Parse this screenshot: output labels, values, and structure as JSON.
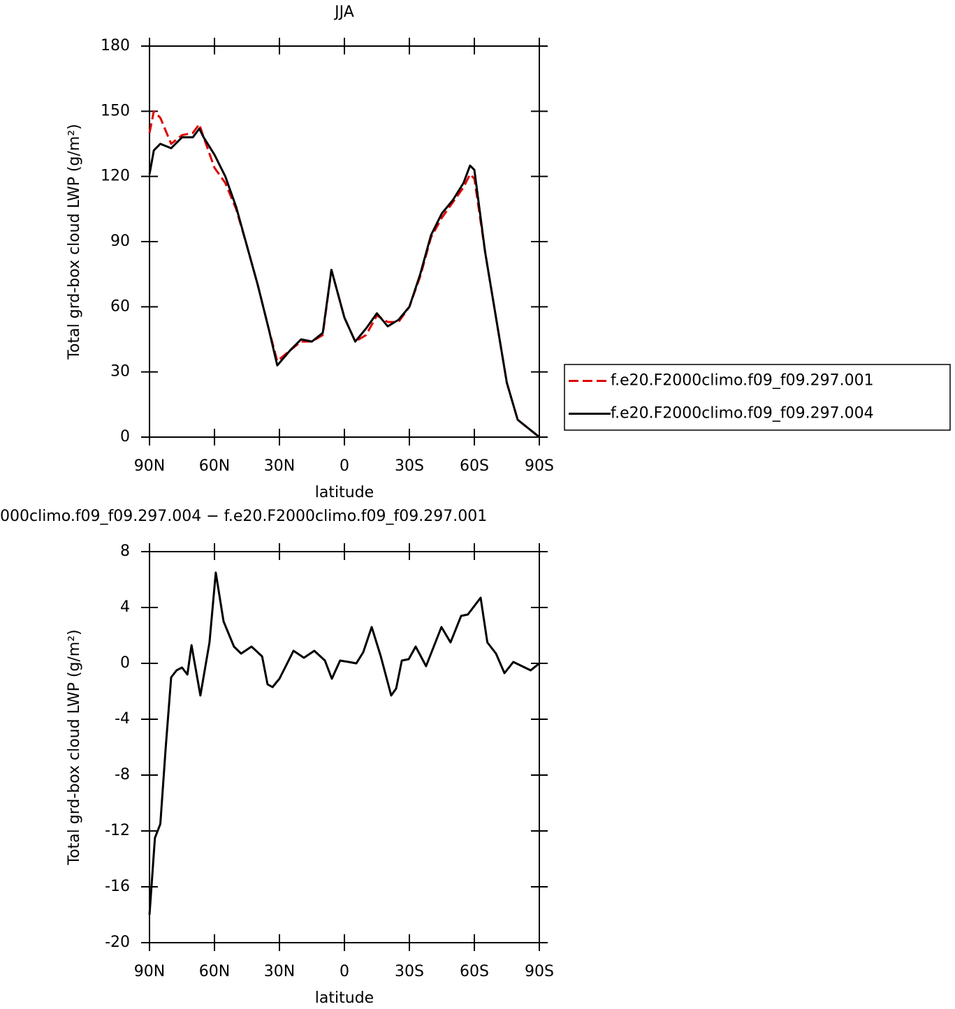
{
  "chart_data": [
    {
      "type": "line",
      "title": "JJA",
      "xlabel": "latitude",
      "ylabel": "Total grd-box cloud LWP (g/m²)",
      "x": [
        90,
        88,
        85,
        80,
        75,
        70,
        67,
        65,
        60,
        55,
        50,
        45,
        40,
        35,
        31,
        25,
        20,
        15,
        10,
        6,
        0,
        -5,
        -10,
        -15,
        -20,
        -25,
        -30,
        -35,
        -40,
        -45,
        -50,
        -55,
        -58,
        -60,
        -65,
        -70,
        -75,
        -80,
        -85,
        -90
      ],
      "series": [
        {
          "name": "f.e20.F2000climo.f09_f09.297.001",
          "color": "#e00000",
          "style": "dashed",
          "values": [
            140,
            150,
            147,
            135,
            139,
            140,
            144,
            138,
            124,
            117,
            105,
            88,
            70,
            50,
            35,
            40,
            44,
            44,
            47,
            77,
            55,
            44,
            47,
            56,
            53,
            53,
            60,
            74,
            92,
            101,
            108,
            115,
            121,
            119,
            85,
            55,
            25,
            8,
            4,
            0
          ]
        },
        {
          "name": "f.e20.F2000climo.f09_f09.297.004",
          "color": "#000000",
          "style": "solid",
          "values": [
            121,
            132,
            135,
            133,
            138,
            138,
            142,
            138,
            130,
            120,
            106,
            88,
            70,
            50,
            33,
            40,
            45,
            44,
            48,
            77,
            55,
            44,
            50,
            57,
            51,
            54,
            60,
            75,
            93,
            103,
            109,
            117,
            125,
            123,
            85,
            55,
            25,
            8,
            4,
            0
          ]
        }
      ],
      "xlim": [
        90,
        -90
      ],
      "xticks": [
        {
          "value": 90,
          "label": "90N"
        },
        {
          "value": 60,
          "label": "60N"
        },
        {
          "value": 30,
          "label": "30N"
        },
        0,
        {
          "value": -30,
          "label": "30S"
        },
        {
          "value": -60,
          "label": "60S"
        },
        {
          "value": -90,
          "label": "90S"
        }
      ],
      "ylim": [
        0,
        180
      ],
      "yticks": [
        0,
        30,
        60,
        90,
        120,
        150,
        180
      ],
      "legend": "right"
    },
    {
      "type": "line",
      "title": "000climo.f09_f09.297.004 − f.e20.F2000climo.f09_f09.297.001",
      "xlabel": "latitude",
      "ylabel": "Total grd-box cloud LWP (g/m²)",
      "x": [
        90,
        87.5,
        85,
        82.5,
        80,
        77.5,
        75,
        72.5,
        70.6,
        66.5,
        62.3,
        59.4,
        55.8,
        51,
        47.7,
        42.9,
        38,
        35.5,
        33.2,
        30,
        23.5,
        18.7,
        13.9,
        9,
        5.8,
        2,
        -2,
        -5.5,
        -8.7,
        -12.6,
        -16.8,
        -21.6,
        -23.9,
        -26.5,
        -29.7,
        -32.9,
        -37.7,
        -44.8,
        -49,
        -53.9,
        -57,
        -62.9,
        -66,
        -70,
        -73.9,
        -78,
        -86,
        -90
      ],
      "values": [
        -18,
        -12.5,
        -11.5,
        -6,
        -1,
        -0.5,
        -0.3,
        -0.8,
        1.3,
        -2.3,
        1.5,
        6.5,
        3,
        1.2,
        0.7,
        1.2,
        0.5,
        -1.5,
        -1.7,
        -1.1,
        0.9,
        0.4,
        0.9,
        0.2,
        -1.1,
        0.2,
        0.1,
        0,
        0.8,
        2.6,
        0.5,
        -2.3,
        -1.8,
        0.2,
        0.3,
        1.2,
        -0.2,
        2.6,
        1.5,
        3.4,
        3.5,
        4.7,
        1.5,
        0.7,
        -0.7,
        0.1,
        -0.5,
        0
      ],
      "color": "#000000",
      "xlim": [
        90,
        -90
      ],
      "xticks": [
        {
          "value": 90,
          "label": "90N"
        },
        {
          "value": 60,
          "label": "60N"
        },
        {
          "value": 30,
          "label": "30N"
        },
        0,
        {
          "value": -30,
          "label": "30S"
        },
        {
          "value": -60,
          "label": "60S"
        },
        {
          "value": -90,
          "label": "90S"
        }
      ],
      "ylim": [
        -20,
        8
      ],
      "yticks": [
        -20,
        -16,
        -12,
        -8,
        -4,
        0,
        4,
        8
      ]
    }
  ]
}
